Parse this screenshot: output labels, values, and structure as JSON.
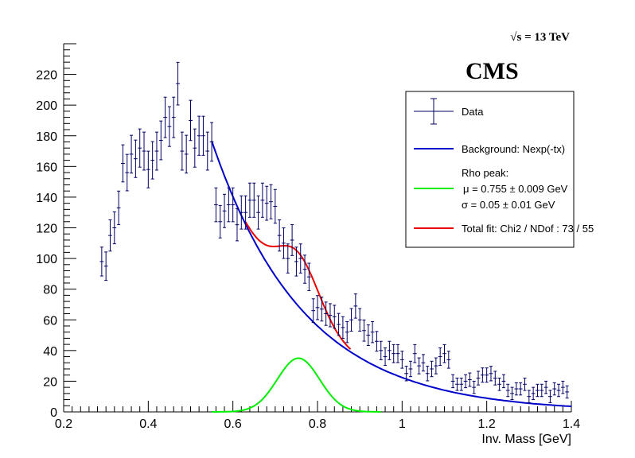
{
  "header": {
    "energy": "√s = 13 TeV",
    "experiment": "CMS"
  },
  "legend": {
    "data": "Data",
    "background": "Background: Nexp(-tx)",
    "rho_title": "Rho peak:",
    "rho_mu": "μ = 0.755 ± 0.009 GeV",
    "rho_sigma": "σ = 0.05 ± 0.01 GeV",
    "total": "Total fit: Chi2 / NDof : 73 / 55"
  },
  "colors": {
    "data": "#000066",
    "background": "#0000cc",
    "rho": "#00ee00",
    "total": "#ee0000"
  },
  "chart_data": {
    "type": "scatter",
    "title": "",
    "xlabel": "Inv. Mass [GeV]",
    "ylabel": "",
    "xlim": [
      0.2,
      1.4
    ],
    "ylim": [
      0,
      240
    ],
    "xticks": [
      0.2,
      0.4,
      0.6,
      0.8,
      1.0,
      1.2,
      1.4
    ],
    "xtick_labels": [
      "0.2",
      "0.4",
      "0.6",
      "0.8",
      "1",
      "1.2",
      "1.4"
    ],
    "yticks": [
      0,
      20,
      40,
      60,
      80,
      100,
      120,
      140,
      160,
      180,
      200,
      220
    ],
    "ytick_labels": [
      "0",
      "20",
      "40",
      "60",
      "80",
      "100",
      "120",
      "140",
      "160",
      "180",
      "200",
      "220"
    ],
    "legend_position": "top-right",
    "grid": false,
    "series": [
      {
        "name": "Data",
        "x": [
          0.29,
          0.3,
          0.31,
          0.32,
          0.33,
          0.34,
          0.35,
          0.36,
          0.37,
          0.38,
          0.39,
          0.4,
          0.41,
          0.42,
          0.43,
          0.44,
          0.45,
          0.46,
          0.47,
          0.48,
          0.49,
          0.5,
          0.51,
          0.52,
          0.53,
          0.54,
          0.55,
          0.56,
          0.57,
          0.58,
          0.59,
          0.6,
          0.61,
          0.62,
          0.63,
          0.64,
          0.65,
          0.66,
          0.67,
          0.68,
          0.69,
          0.7,
          0.71,
          0.72,
          0.73,
          0.74,
          0.75,
          0.76,
          0.77,
          0.78,
          0.79,
          0.8,
          0.81,
          0.82,
          0.83,
          0.84,
          0.85,
          0.86,
          0.87,
          0.88,
          0.89,
          0.9,
          0.91,
          0.92,
          0.93,
          0.94,
          0.95,
          0.96,
          0.97,
          0.98,
          0.99,
          1.0,
          1.01,
          1.02,
          1.03,
          1.04,
          1.05,
          1.06,
          1.07,
          1.08,
          1.09,
          1.1,
          1.11,
          1.12,
          1.13,
          1.14,
          1.15,
          1.16,
          1.17,
          1.18,
          1.19,
          1.2,
          1.21,
          1.22,
          1.23,
          1.24,
          1.25,
          1.26,
          1.27,
          1.28,
          1.29,
          1.3,
          1.31,
          1.32,
          1.33,
          1.34,
          1.35,
          1.36,
          1.37,
          1.38,
          1.39
        ],
        "y": [
          98,
          95,
          115,
          120,
          133,
          162,
          156,
          168,
          165,
          172,
          170,
          158,
          164,
          170,
          177,
          192,
          186,
          192,
          214,
          170,
          168,
          190,
          172,
          180,
          180,
          170,
          176,
          135,
          124,
          131,
          135,
          135,
          122,
          130,
          130,
          138,
          138,
          130,
          138,
          136,
          137,
          134,
          115,
          110,
          100,
          112,
          98,
          100,
          93,
          88,
          66,
          68,
          67,
          64,
          63,
          62,
          57,
          55,
          52,
          60,
          69,
          60,
          53,
          50,
          52,
          46,
          40,
          36,
          40,
          38,
          38,
          34,
          25,
          28,
          38,
          30,
          32,
          25,
          28,
          30,
          36,
          38,
          34,
          20,
          18,
          18,
          20,
          21,
          16,
          22,
          24,
          24,
          25,
          22,
          18,
          20,
          14,
          12,
          15,
          15,
          18,
          10,
          12,
          14,
          14,
          16,
          10,
          15,
          14,
          16,
          13
        ],
        "err": 9.5
      },
      {
        "name": "Background: Nexp(-tx)",
        "x": [
          0.55,
          0.6,
          0.65,
          0.7,
          0.75,
          0.8,
          0.85,
          0.9,
          0.95,
          1.0,
          1.05,
          1.1,
          1.15,
          1.2,
          1.25,
          1.3,
          1.35,
          1.4
        ],
        "y": [
          176.6,
          140.4,
          111.6,
          88.7,
          70.5,
          56.0,
          44.5,
          35.4,
          28.1,
          22.4,
          17.8,
          14.1,
          11.2,
          8.9,
          7.1,
          5.6,
          4.5,
          3.6
        ]
      },
      {
        "name": "Rho peak",
        "mu": 0.755,
        "sigma": 0.05,
        "amplitude": 35,
        "range": [
          0.55,
          0.95
        ]
      },
      {
        "name": "Total fit: Chi2 / NDof : 73 / 55",
        "range": [
          0.63,
          0.88
        ]
      }
    ]
  }
}
